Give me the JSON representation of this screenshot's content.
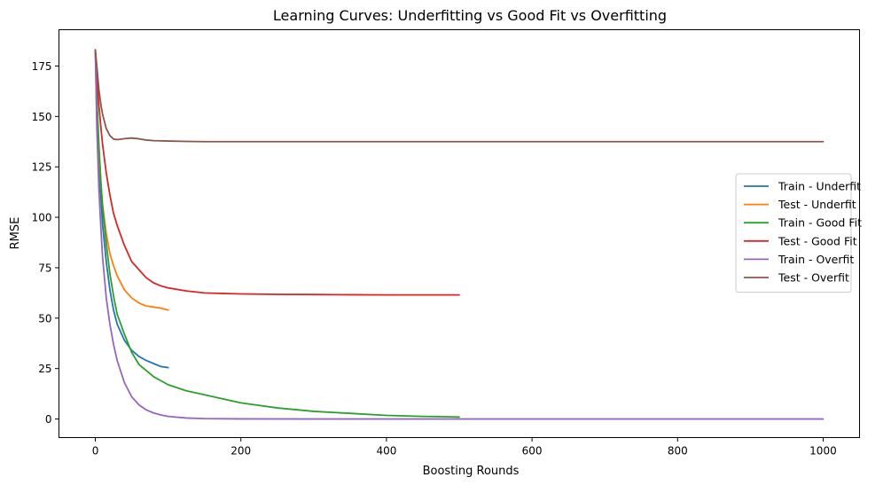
{
  "chart_data": {
    "type": "line",
    "title": "Learning Curves: Underfitting vs Good Fit vs Overfitting",
    "xlabel": "Boosting Rounds",
    "ylabel": "RMSE",
    "xlim": [
      -50,
      1050
    ],
    "ylim": [
      -9.2,
      193
    ],
    "x_ticks": [
      0,
      200,
      400,
      600,
      800,
      1000
    ],
    "x_tick_labels": [
      "0",
      "200",
      "400",
      "600",
      "800",
      "1000"
    ],
    "y_ticks": [
      0,
      25,
      50,
      75,
      100,
      125,
      150,
      175
    ],
    "y_tick_labels": [
      "0",
      "25",
      "50",
      "75",
      "100",
      "125",
      "150",
      "175"
    ],
    "grid": false,
    "legend_position": "center-right",
    "series": [
      {
        "name": "Train - Underfit",
        "color": "#1f77b4",
        "x": [
          0,
          2,
          5,
          8,
          10,
          15,
          20,
          25,
          30,
          40,
          50,
          60,
          70,
          80,
          90,
          100
        ],
        "y": [
          183,
          150,
          125,
          108,
          96,
          78,
          64,
          54,
          47,
          39,
          34,
          31,
          29,
          27.5,
          26,
          25.5
        ]
      },
      {
        "name": "Test - Underfit",
        "color": "#ff7f0e",
        "x": [
          0,
          2,
          5,
          8,
          10,
          15,
          20,
          25,
          30,
          40,
          50,
          60,
          70,
          80,
          90,
          100
        ],
        "y": [
          183,
          155,
          130,
          115,
          106,
          92,
          82,
          76,
          71,
          64,
          60,
          57.5,
          56,
          55.5,
          55,
          54
        ]
      },
      {
        "name": "Train - Good Fit",
        "color": "#2ca02c",
        "x": [
          0,
          2,
          5,
          8,
          10,
          15,
          20,
          25,
          30,
          40,
          50,
          60,
          70,
          80,
          90,
          100,
          125,
          150,
          200,
          250,
          300,
          350,
          400,
          450,
          500
        ],
        "y": [
          183,
          160,
          135,
          115,
          105,
          87,
          72,
          61,
          52,
          42,
          33,
          27,
          24,
          21,
          19,
          17,
          14,
          12,
          8,
          5.5,
          3.8,
          2.8,
          1.8,
          1.3,
          1.0
        ]
      },
      {
        "name": "Test - Good Fit",
        "color": "#d62728",
        "x": [
          0,
          2,
          5,
          8,
          10,
          15,
          20,
          25,
          30,
          40,
          50,
          60,
          70,
          80,
          90,
          100,
          125,
          150,
          200,
          250,
          300,
          350,
          400,
          450,
          500
        ],
        "y": [
          183,
          170,
          155,
          143,
          136,
          122,
          111,
          102,
          96,
          86,
          78,
          74,
          70,
          67.5,
          66,
          65,
          63.5,
          62.5,
          62,
          61.8,
          61.7,
          61.6,
          61.5,
          61.5,
          61.5
        ]
      },
      {
        "name": "Train - Overfit",
        "color": "#9467bd",
        "x": [
          0,
          2,
          5,
          8,
          10,
          15,
          20,
          25,
          30,
          40,
          50,
          60,
          70,
          80,
          90,
          100,
          125,
          150,
          200,
          300,
          500,
          700,
          1000
        ],
        "y": [
          183,
          145,
          113,
          92,
          80,
          60,
          47,
          37,
          29,
          18,
          11,
          7,
          4.5,
          3,
          2,
          1.3,
          0.5,
          0.2,
          0.05,
          0,
          0,
          0,
          0
        ]
      },
      {
        "name": "Test - Overfit",
        "color": "#8c564b",
        "x": [
          0,
          2,
          5,
          8,
          10,
          15,
          20,
          25,
          30,
          40,
          50,
          60,
          70,
          80,
          100,
          125,
          150,
          200,
          300,
          500,
          700,
          1000
        ],
        "y": [
          183,
          175,
          163,
          155,
          151,
          144,
          140.5,
          138.8,
          138.5,
          139,
          139.3,
          138.9,
          138.3,
          138,
          137.8,
          137.6,
          137.5,
          137.5,
          137.5,
          137.5,
          137.5,
          137.5
        ]
      }
    ]
  }
}
